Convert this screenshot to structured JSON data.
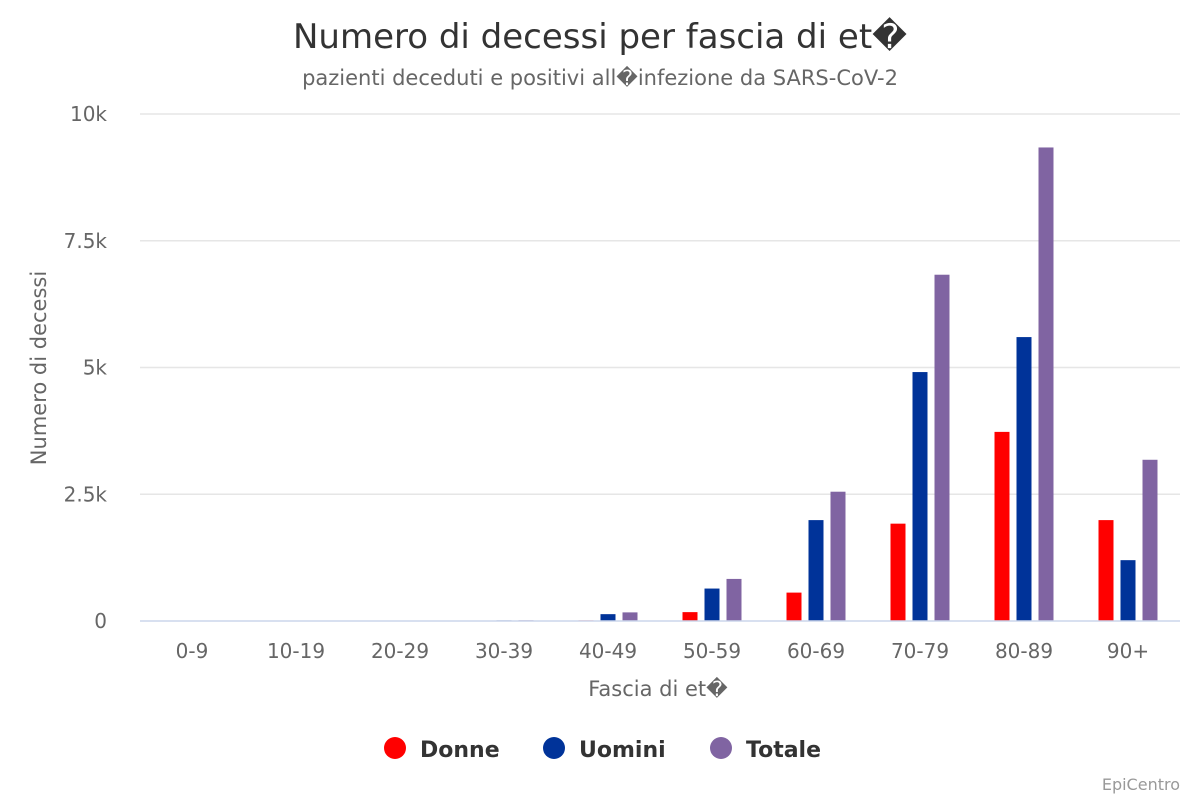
{
  "colors": {
    "Donne": "#ff0000",
    "Uomini": "#003399",
    "Totale": "#8064a2",
    "grid": "#e6e6e6",
    "axis": "#ccd6eb"
  },
  "credit": "EpiCentro",
  "chart_data": {
    "type": "bar",
    "title": "Numero di decessi per fascia di et�",
    "subtitle": "pazienti deceduti e positivi all�infezione da SARS-CoV-2",
    "xlabel": "Fascia di et�",
    "ylabel": "Numero di decessi",
    "categories": [
      "0-9",
      "10-19",
      "20-29",
      "30-39",
      "40-49",
      "50-59",
      "60-69",
      "70-79",
      "80-89",
      "90+"
    ],
    "series": [
      {
        "name": "Donne",
        "values": [
          0,
          0,
          1,
          2,
          12,
          175,
          560,
          1920,
          3730,
          1990
        ]
      },
      {
        "name": "Uomini",
        "values": [
          1,
          0,
          4,
          12,
          135,
          640,
          1990,
          4910,
          5600,
          1200
        ]
      },
      {
        "name": "Totale",
        "values": [
          1,
          0,
          5,
          14,
          170,
          830,
          2550,
          6830,
          9340,
          3180
        ]
      }
    ],
    "ylim": [
      0,
      10000
    ],
    "yticks": [
      {
        "value": 0,
        "label": "0"
      },
      {
        "value": 2500,
        "label": "2.5k"
      },
      {
        "value": 5000,
        "label": "5k"
      },
      {
        "value": 7500,
        "label": "7.5k"
      },
      {
        "value": 10000,
        "label": "10k"
      }
    ],
    "grid": true,
    "legend": "bottom"
  }
}
